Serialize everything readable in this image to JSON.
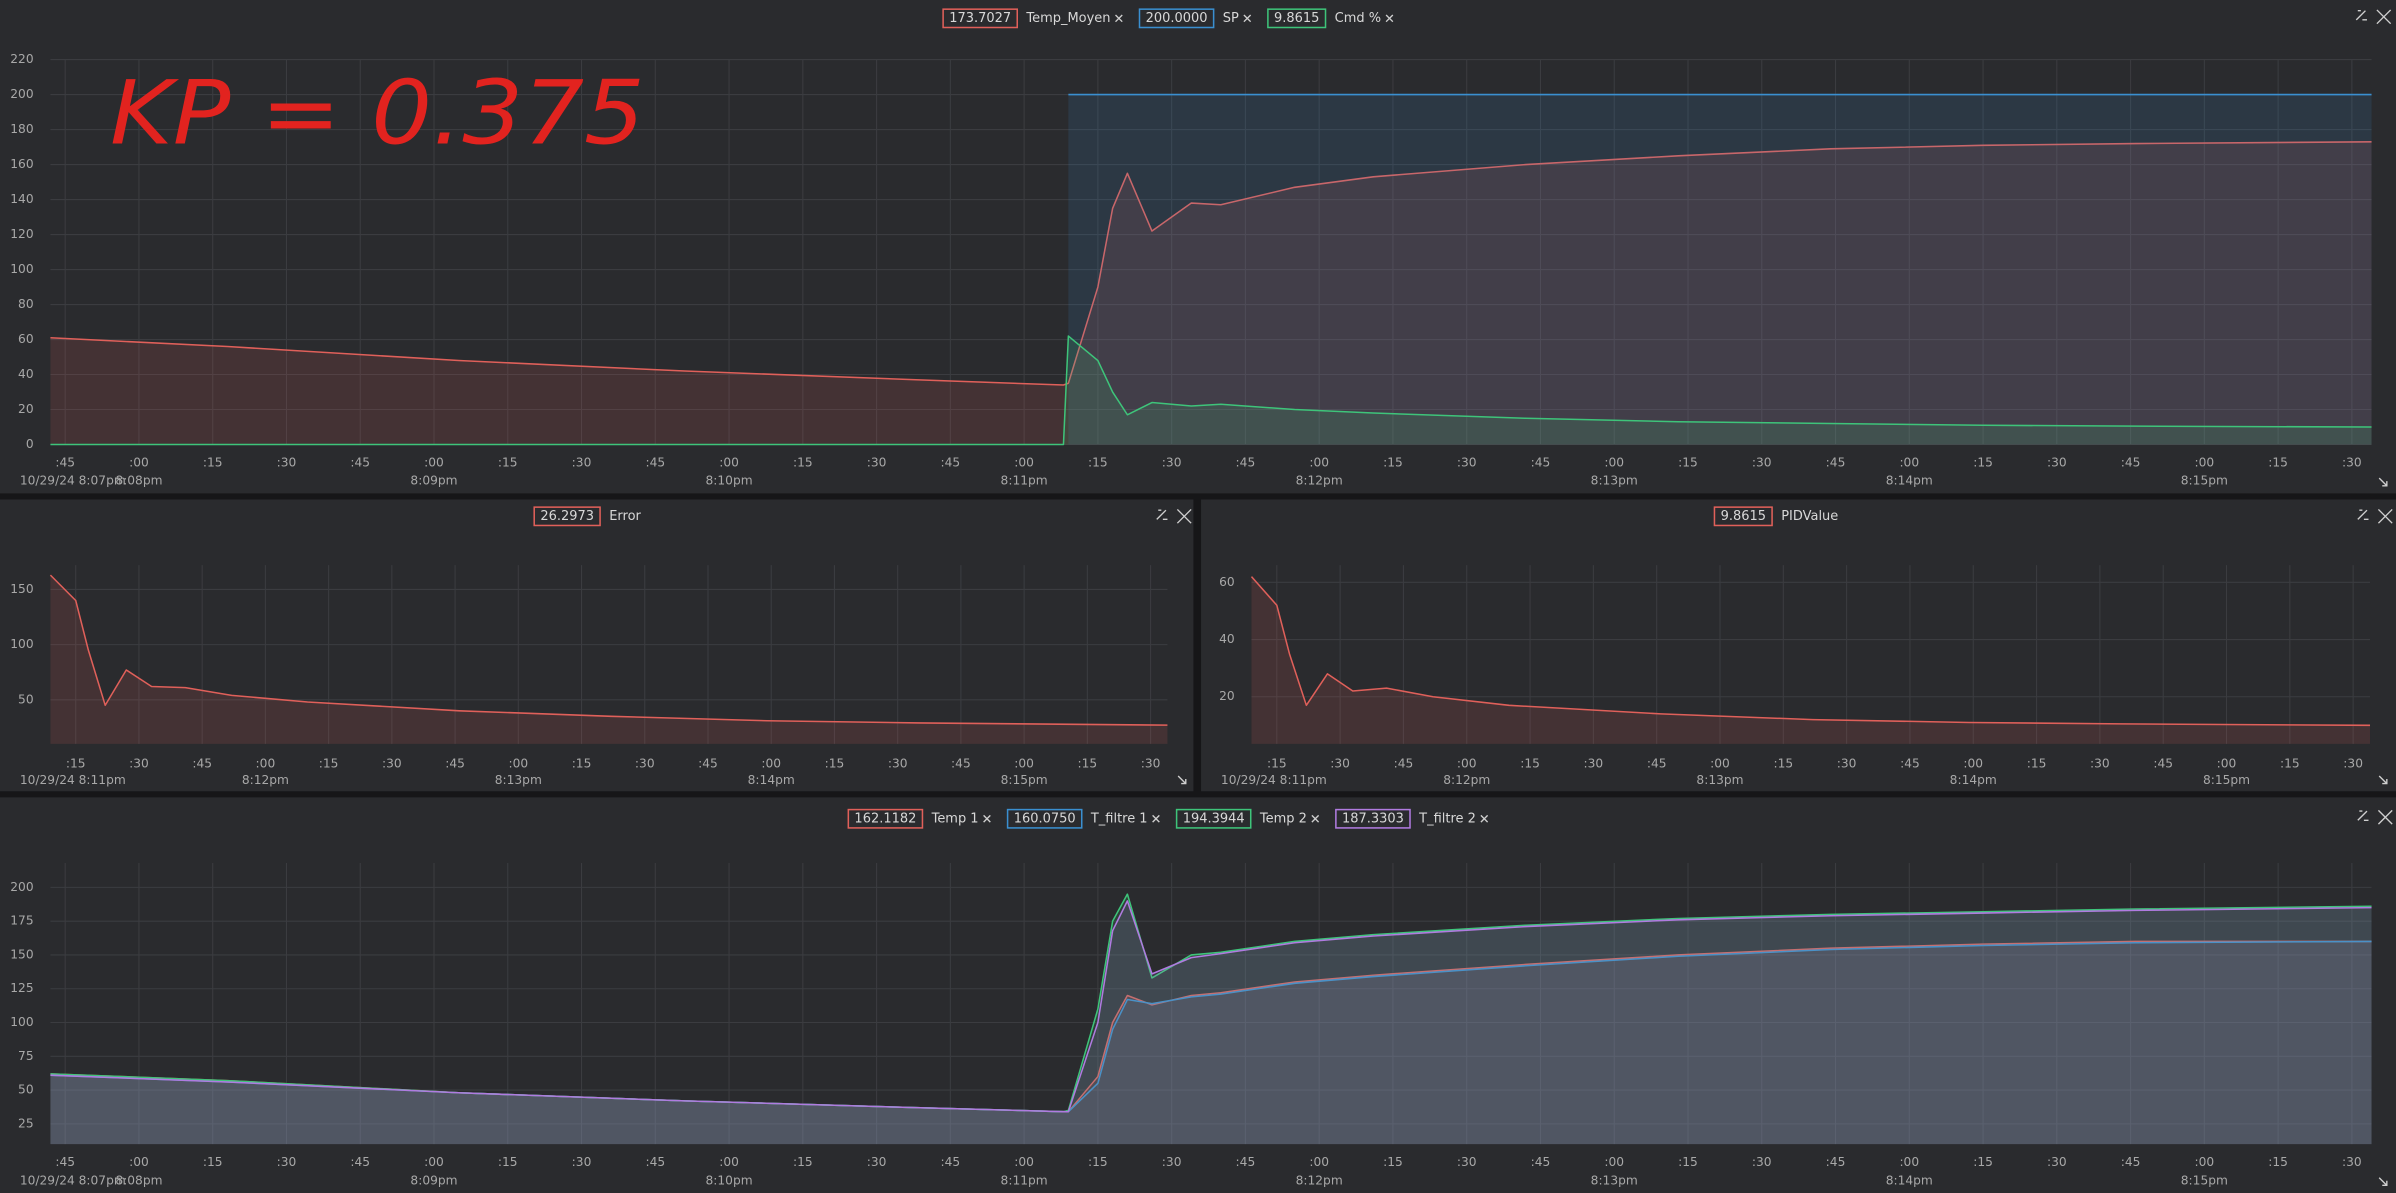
{
  "chart_data": [
    {
      "type": "line",
      "annotation": "KP = 0.375",
      "grid": true,
      "fill": true,
      "x": [
        "20:07:42",
        "20:08:18",
        "20:09:05",
        "20:09:51",
        "20:10:38",
        "20:11:08",
        "20:11:09",
        "20:11:15",
        "20:11:18",
        "20:11:21",
        "20:11:26",
        "20:11:34",
        "20:11:40",
        "20:11:55",
        "20:12:11",
        "20:12:42",
        "20:13:13",
        "20:13:44",
        "20:14:15",
        "20:14:46",
        "20:15:34"
      ],
      "series": [
        {
          "name": "Temp_Moyen",
          "legend_value": "173.7027",
          "color": "#e0605a",
          "values": [
            61,
            56,
            48,
            42,
            37,
            34,
            35,
            90,
            135,
            155,
            122,
            138,
            137,
            147,
            153,
            160,
            165,
            169,
            171,
            172,
            173
          ]
        },
        {
          "name": "SP",
          "legend_value": "200.0000",
          "color": "#3a8fd0",
          "values": [
            null,
            null,
            null,
            null,
            null,
            null,
            200,
            200,
            200,
            200,
            200,
            200,
            200,
            200,
            200,
            200,
            200,
            200,
            200,
            200,
            200
          ]
        },
        {
          "name": "Cmd %",
          "legend_value": "9.8615",
          "color": "#3ec47a",
          "values": [
            0,
            0,
            0,
            0,
            0,
            0,
            62,
            48,
            30,
            17,
            24,
            22,
            23,
            20,
            18,
            15,
            13,
            12,
            11,
            10.5,
            10
          ]
        }
      ],
      "xlim": [
        "20:07:42",
        "20:15:34"
      ],
      "ylim": [
        0,
        220
      ],
      "yticks": [
        0,
        20,
        40,
        60,
        80,
        100,
        120,
        140,
        160,
        180,
        200,
        220
      ],
      "xticks": [
        {
          "value": "20:07:45",
          "label": ":45"
        },
        {
          "value": "20:08:00",
          "label": ":00"
        },
        {
          "value": "20:08:15",
          "label": ":15"
        },
        {
          "value": "20:08:30",
          "label": ":30"
        },
        {
          "value": "20:08:45",
          "label": ":45"
        },
        {
          "value": "20:09:00",
          "label": ":00"
        },
        {
          "value": "20:09:15",
          "label": ":15"
        },
        {
          "value": "20:09:30",
          "label": ":30"
        },
        {
          "value": "20:09:45",
          "label": ":45"
        },
        {
          "value": "20:10:00",
          "label": ":00"
        },
        {
          "value": "20:10:15",
          "label": ":15"
        },
        {
          "value": "20:10:30",
          "label": ":30"
        },
        {
          "value": "20:10:45",
          "label": ":45"
        },
        {
          "value": "20:11:00",
          "label": ":00"
        },
        {
          "value": "20:11:15",
          "label": ":15"
        },
        {
          "value": "20:11:30",
          "label": ":30"
        },
        {
          "value": "20:11:45",
          "label": ":45"
        },
        {
          "value": "20:12:00",
          "label": ":00"
        },
        {
          "value": "20:12:15",
          "label": ":15"
        },
        {
          "value": "20:12:30",
          "label": ":30"
        },
        {
          "value": "20:12:45",
          "label": ":45"
        },
        {
          "value": "20:13:00",
          "label": ":00"
        },
        {
          "value": "20:13:15",
          "label": ":15"
        },
        {
          "value": "20:13:30",
          "label": ":30"
        },
        {
          "value": "20:13:45",
          "label": ":45"
        },
        {
          "value": "20:14:00",
          "label": ":00"
        },
        {
          "value": "20:14:15",
          "label": ":15"
        },
        {
          "value": "20:14:30",
          "label": ":30"
        },
        {
          "value": "20:14:45",
          "label": ":45"
        },
        {
          "value": "20:15:00",
          "label": ":00"
        },
        {
          "value": "20:15:15",
          "label": ":15"
        },
        {
          "value": "20:15:30",
          "label": ":30"
        }
      ],
      "xticks_major": [
        {
          "value": "20:07:42",
          "label": "10/29/24 8:07pm"
        },
        {
          "value": "20:08:00",
          "label": "8:08pm"
        },
        {
          "value": "20:09:00",
          "label": "8:09pm"
        },
        {
          "value": "20:10:00",
          "label": "8:10pm"
        },
        {
          "value": "20:11:00",
          "label": "8:11pm"
        },
        {
          "value": "20:12:00",
          "label": "8:12pm"
        },
        {
          "value": "20:13:00",
          "label": "8:13pm"
        },
        {
          "value": "20:14:00",
          "label": "8:14pm"
        },
        {
          "value": "20:15:00",
          "label": "8:15pm"
        }
      ]
    },
    {
      "type": "line",
      "grid": true,
      "fill": true,
      "x": [
        "20:11:09",
        "20:11:15",
        "20:11:18",
        "20:11:22",
        "20:11:27",
        "20:11:33",
        "20:11:41",
        "20:11:52",
        "20:12:10",
        "20:12:46",
        "20:13:22",
        "20:13:59",
        "20:14:35",
        "20:15:34"
      ],
      "series": [
        {
          "name": "Error",
          "legend_value": "26.2973",
          "color": "#e0605a",
          "values": [
            163,
            140,
            95,
            45,
            77,
            62,
            61,
            54,
            48,
            40,
            35,
            31,
            29,
            27
          ]
        }
      ],
      "xlim": [
        "20:11:09",
        "20:15:34"
      ],
      "ylim": [
        10,
        172
      ],
      "yticks": [
        50,
        100,
        150
      ],
      "xticks": [
        {
          "value": "20:11:15",
          "label": ":15"
        },
        {
          "value": "20:11:30",
          "label": ":30"
        },
        {
          "value": "20:11:45",
          "label": ":45"
        },
        {
          "value": "20:12:00",
          "label": ":00"
        },
        {
          "value": "20:12:15",
          "label": ":15"
        },
        {
          "value": "20:12:30",
          "label": ":30"
        },
        {
          "value": "20:12:45",
          "label": ":45"
        },
        {
          "value": "20:13:00",
          "label": ":00"
        },
        {
          "value": "20:13:15",
          "label": ":15"
        },
        {
          "value": "20:13:30",
          "label": ":30"
        },
        {
          "value": "20:13:45",
          "label": ":45"
        },
        {
          "value": "20:14:00",
          "label": ":00"
        },
        {
          "value": "20:14:15",
          "label": ":15"
        },
        {
          "value": "20:14:30",
          "label": ":30"
        },
        {
          "value": "20:14:45",
          "label": ":45"
        },
        {
          "value": "20:15:00",
          "label": ":00"
        },
        {
          "value": "20:15:15",
          "label": ":15"
        },
        {
          "value": "20:15:30",
          "label": ":30"
        }
      ],
      "xticks_major": [
        {
          "value": "20:11:09",
          "label": "10/29/24 8:11pm"
        },
        {
          "value": "20:12:00",
          "label": "8:12pm"
        },
        {
          "value": "20:13:00",
          "label": "8:13pm"
        },
        {
          "value": "20:14:00",
          "label": "8:14pm"
        },
        {
          "value": "20:15:00",
          "label": "8:15pm"
        }
      ]
    },
    {
      "type": "line",
      "grid": true,
      "fill": true,
      "x": [
        "20:11:09",
        "20:11:15",
        "20:11:18",
        "20:11:22",
        "20:11:27",
        "20:11:33",
        "20:11:41",
        "20:11:52",
        "20:12:10",
        "20:12:46",
        "20:13:22",
        "20:13:59",
        "20:14:35",
        "20:15:34"
      ],
      "series": [
        {
          "name": "PIDValue",
          "legend_value": "9.8615",
          "color": "#e0605a",
          "values": [
            62,
            52,
            35,
            17,
            28,
            22,
            23,
            20,
            17,
            14,
            12,
            11,
            10.5,
            10
          ]
        }
      ],
      "xlim": [
        "20:11:09",
        "20:15:34"
      ],
      "ylim": [
        3.5,
        66
      ],
      "yticks": [
        20,
        40,
        60
      ],
      "xticks": [
        {
          "value": "20:11:15",
          "label": ":15"
        },
        {
          "value": "20:11:30",
          "label": ":30"
        },
        {
          "value": "20:11:45",
          "label": ":45"
        },
        {
          "value": "20:12:00",
          "label": ":00"
        },
        {
          "value": "20:12:15",
          "label": ":15"
        },
        {
          "value": "20:12:30",
          "label": ":30"
        },
        {
          "value": "20:12:45",
          "label": ":45"
        },
        {
          "value": "20:13:00",
          "label": ":00"
        },
        {
          "value": "20:13:15",
          "label": ":15"
        },
        {
          "value": "20:13:30",
          "label": ":30"
        },
        {
          "value": "20:13:45",
          "label": ":45"
        },
        {
          "value": "20:14:00",
          "label": ":00"
        },
        {
          "value": "20:14:15",
          "label": ":15"
        },
        {
          "value": "20:14:30",
          "label": ":30"
        },
        {
          "value": "20:14:45",
          "label": ":45"
        },
        {
          "value": "20:15:00",
          "label": ":00"
        },
        {
          "value": "20:15:15",
          "label": ":15"
        },
        {
          "value": "20:15:30",
          "label": ":30"
        }
      ],
      "xticks_major": [
        {
          "value": "20:11:09",
          "label": "10/29/24 8:11pm"
        },
        {
          "value": "20:12:00",
          "label": "8:12pm"
        },
        {
          "value": "20:13:00",
          "label": "8:13pm"
        },
        {
          "value": "20:14:00",
          "label": "8:14pm"
        },
        {
          "value": "20:15:00",
          "label": "8:15pm"
        }
      ]
    },
    {
      "type": "line",
      "grid": true,
      "fill": true,
      "x": [
        "20:07:42",
        "20:08:18",
        "20:09:05",
        "20:09:51",
        "20:10:38",
        "20:11:08",
        "20:11:09",
        "20:11:15",
        "20:11:18",
        "20:11:21",
        "20:11:26",
        "20:11:34",
        "20:11:40",
        "20:11:55",
        "20:12:11",
        "20:12:42",
        "20:13:13",
        "20:13:44",
        "20:14:15",
        "20:14:46",
        "20:15:34"
      ],
      "series": [
        {
          "name": "Temp 1",
          "legend_value": "162.1182",
          "color": "#e0605a",
          "values": [
            62,
            57,
            48,
            42,
            37,
            34,
            34,
            60,
            100,
            120,
            113,
            120,
            122,
            130,
            135,
            143,
            150,
            155,
            158,
            160,
            160
          ]
        },
        {
          "name": "T_filtre 1",
          "legend_value": "160.0750",
          "color": "#3a8fd0",
          "values": [
            61,
            56,
            48,
            42,
            37,
            34,
            34,
            55,
            95,
            117,
            114,
            119,
            121,
            129,
            134,
            142,
            149,
            154,
            157,
            159,
            160
          ]
        },
        {
          "name": "Temp 2",
          "legend_value": "194.3944",
          "color": "#3ec47a",
          "values": [
            62,
            57,
            48,
            42,
            37,
            34,
            35,
            110,
            175,
            195,
            133,
            150,
            152,
            160,
            165,
            172,
            177,
            180,
            182,
            184,
            186
          ]
        },
        {
          "name": "T_filtre 2",
          "legend_value": "187.3303",
          "color": "#b07be0",
          "values": [
            61,
            56,
            48,
            42,
            37,
            34,
            34,
            100,
            168,
            190,
            136,
            148,
            151,
            159,
            164,
            171,
            176,
            179,
            181,
            183,
            185
          ]
        }
      ],
      "xlim": [
        "20:07:42",
        "20:15:34"
      ],
      "ylim": [
        10,
        218
      ],
      "yticks": [
        25,
        50,
        75,
        100,
        125,
        150,
        175,
        200
      ],
      "xticks": [
        {
          "value": "20:07:45",
          "label": ":45"
        },
        {
          "value": "20:08:00",
          "label": ":00"
        },
        {
          "value": "20:08:15",
          "label": ":15"
        },
        {
          "value": "20:08:30",
          "label": ":30"
        },
        {
          "value": "20:08:45",
          "label": ":45"
        },
        {
          "value": "20:09:00",
          "label": ":00"
        },
        {
          "value": "20:09:15",
          "label": ":15"
        },
        {
          "value": "20:09:30",
          "label": ":30"
        },
        {
          "value": "20:09:45",
          "label": ":45"
        },
        {
          "value": "20:10:00",
          "label": ":00"
        },
        {
          "value": "20:10:15",
          "label": ":15"
        },
        {
          "value": "20:10:30",
          "label": ":30"
        },
        {
          "value": "20:10:45",
          "label": ":45"
        },
        {
          "value": "20:11:00",
          "label": ":00"
        },
        {
          "value": "20:11:15",
          "label": ":15"
        },
        {
          "value": "20:11:30",
          "label": ":30"
        },
        {
          "value": "20:11:45",
          "label": ":45"
        },
        {
          "value": "20:12:00",
          "label": ":00"
        },
        {
          "value": "20:12:15",
          "label": ":15"
        },
        {
          "value": "20:12:30",
          "label": ":30"
        },
        {
          "value": "20:12:45",
          "label": ":45"
        },
        {
          "value": "20:13:00",
          "label": ":00"
        },
        {
          "value": "20:13:15",
          "label": ":15"
        },
        {
          "value": "20:13:30",
          "label": ":30"
        },
        {
          "value": "20:13:45",
          "label": ":45"
        },
        {
          "value": "20:14:00",
          "label": ":00"
        },
        {
          "value": "20:14:15",
          "label": ":15"
        },
        {
          "value": "20:14:30",
          "label": ":30"
        },
        {
          "value": "20:14:45",
          "label": ":45"
        },
        {
          "value": "20:15:00",
          "label": ":00"
        },
        {
          "value": "20:15:15",
          "label": ":15"
        },
        {
          "value": "20:15:30",
          "label": ":30"
        }
      ],
      "xticks_major": [
        {
          "value": "20:07:42",
          "label": "10/29/24 8:07pm"
        },
        {
          "value": "20:08:00",
          "label": "8:08pm"
        },
        {
          "value": "20:09:00",
          "label": "8:09pm"
        },
        {
          "value": "20:10:00",
          "label": "8:10pm"
        },
        {
          "value": "20:11:00",
          "label": "8:11pm"
        },
        {
          "value": "20:12:00",
          "label": "8:12pm"
        },
        {
          "value": "20:13:00",
          "label": "8:13pm"
        },
        {
          "value": "20:14:00",
          "label": "8:14pm"
        },
        {
          "value": "20:15:00",
          "label": "8:15pm"
        }
      ]
    }
  ]
}
